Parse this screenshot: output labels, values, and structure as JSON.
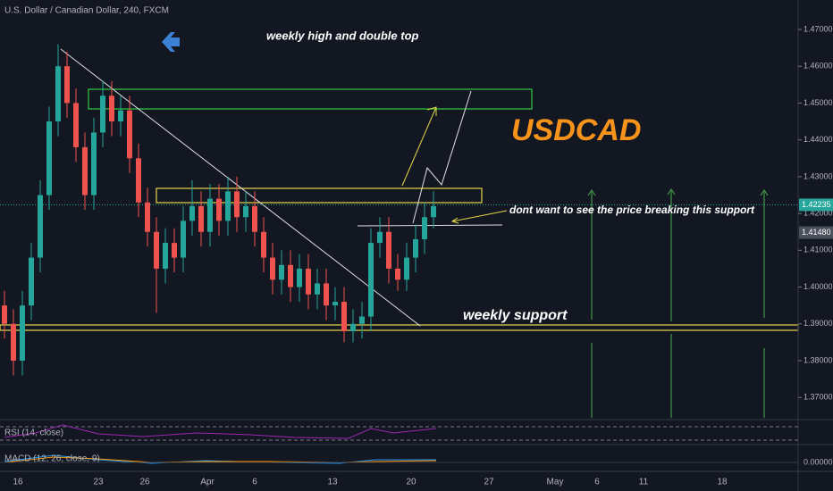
{
  "chart_data": {
    "type": "candlestick",
    "title": "U.S. Dollar / Canadian Dollar, 240, FXCM",
    "annotations": [
      "weekly high and double top",
      "USDCAD",
      "dont want to see the price breaking this support",
      "weekly support"
    ],
    "indicators": [
      "RSI (14, close)",
      "MACD (12, 26, close, 9)"
    ],
    "macd_tick": {
      "value": 0,
      "label": "0.00000"
    },
    "x_labels": [
      "16",
      "23",
      "26",
      "Apr",
      "6",
      "13",
      "20",
      "27",
      "May",
      "6",
      "11",
      "18"
    ],
    "open": [
      1.395,
      1.39,
      1.38,
      1.395,
      1.408,
      1.425,
      1.445,
      1.46,
      1.45,
      1.438,
      1.425,
      1.442,
      1.452,
      1.445,
      1.448,
      1.435,
      1.423,
      1.415,
      1.405,
      1.412,
      1.408,
      1.418,
      1.422,
      1.415,
      1.424,
      1.418,
      1.426,
      1.419,
      1.422,
      1.415,
      1.408,
      1.402,
      1.406,
      1.4,
      1.405,
      1.398,
      1.401,
      1.395,
      1.396,
      1.388,
      1.39,
      1.392,
      1.412,
      1.415,
      1.405,
      1.402,
      1.408,
      1.413,
      1.419
    ],
    "high": [
      1.399,
      1.394,
      1.399,
      1.412,
      1.429,
      1.449,
      1.466,
      1.464,
      1.454,
      1.442,
      1.446,
      1.456,
      1.456,
      1.452,
      1.452,
      1.439,
      1.427,
      1.419,
      1.416,
      1.416,
      1.422,
      1.429,
      1.426,
      1.428,
      1.428,
      1.43,
      1.43,
      1.426,
      1.426,
      1.419,
      1.412,
      1.41,
      1.41,
      1.409,
      1.409,
      1.405,
      1.405,
      1.4,
      1.4,
      1.394,
      1.396,
      1.416,
      1.419,
      1.419,
      1.409,
      1.412,
      1.417,
      1.423,
      1.426
    ],
    "low": [
      1.386,
      1.376,
      1.376,
      1.391,
      1.404,
      1.421,
      1.441,
      1.446,
      1.434,
      1.421,
      1.421,
      1.438,
      1.441,
      1.441,
      1.431,
      1.419,
      1.411,
      1.393,
      1.401,
      1.404,
      1.404,
      1.414,
      1.411,
      1.411,
      1.414,
      1.414,
      1.415,
      1.415,
      1.411,
      1.404,
      1.398,
      1.398,
      1.396,
      1.396,
      1.394,
      1.394,
      1.391,
      1.391,
      1.385,
      1.385,
      1.386,
      1.388,
      1.408,
      1.401,
      1.399,
      1.399,
      1.404,
      1.409,
      1.416
    ],
    "close": [
      1.39,
      1.38,
      1.395,
      1.408,
      1.425,
      1.445,
      1.46,
      1.45,
      1.438,
      1.425,
      1.442,
      1.452,
      1.445,
      1.448,
      1.435,
      1.423,
      1.415,
      1.405,
      1.412,
      1.408,
      1.418,
      1.422,
      1.415,
      1.424,
      1.418,
      1.426,
      1.419,
      1.422,
      1.415,
      1.408,
      1.402,
      1.406,
      1.4,
      1.405,
      1.398,
      1.401,
      1.395,
      1.396,
      1.388,
      1.39,
      1.392,
      1.412,
      1.415,
      1.405,
      1.402,
      1.408,
      1.413,
      1.419,
      1.422
    ],
    "up_color": "#26a69a",
    "down_color": "#ef5350",
    "ylim": [
      1.364,
      1.478
    ],
    "yticks": [
      {
        "value": 1.47,
        "label": "1.47000"
      },
      {
        "value": 1.46,
        "label": "1.46000"
      },
      {
        "value": 1.45,
        "label": "1.45000"
      },
      {
        "value": 1.44,
        "label": "1.44000"
      },
      {
        "value": 1.43,
        "label": "1.43000"
      },
      {
        "value": 1.42,
        "label": "1.42000"
      },
      {
        "value": 1.41,
        "label": "1.41000"
      },
      {
        "value": 1.4,
        "label": "1.40000"
      },
      {
        "value": 1.39,
        "label": "1.39000"
      },
      {
        "value": 1.38,
        "label": "1.38000"
      },
      {
        "value": 1.37,
        "label": "1.37000"
      }
    ],
    "price_labels": [
      {
        "value": 1.42235,
        "label": "1.42235"
      },
      {
        "value": 1.4148,
        "label": "1.41480"
      }
    ]
  }
}
